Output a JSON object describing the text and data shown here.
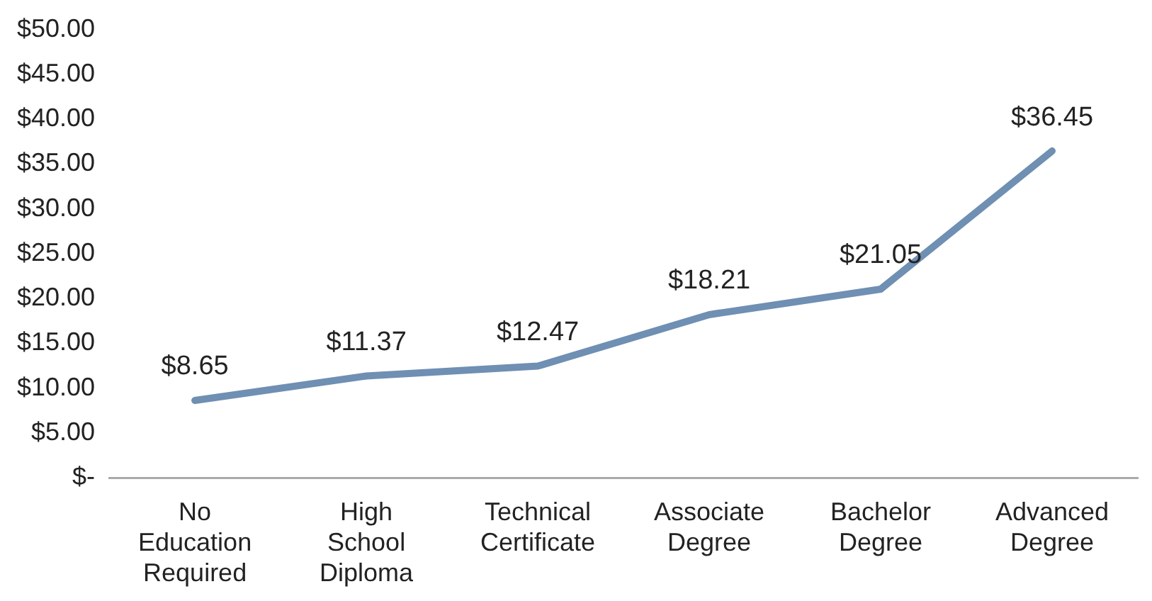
{
  "chart_data": {
    "type": "line",
    "categories": [
      "No Education Required",
      "High School Diploma",
      "Technical Certificate",
      "Associate Degree",
      "Bachelor Degree",
      "Advanced Degree"
    ],
    "series": [
      {
        "color": "#6f8fb3",
        "values": [
          8.65,
          11.37,
          12.47,
          18.21,
          21.05,
          36.45
        ],
        "value_labels": [
          "$8.65",
          "$11.37",
          "$12.47",
          "$18.21",
          "$21.05",
          "$36.45"
        ]
      }
    ],
    "ylim": [
      0,
      50
    ],
    "yticks": [
      {
        "value": 0,
        "label": "$-"
      },
      {
        "value": 5,
        "label": "$5.00"
      },
      {
        "value": 10,
        "label": "$10.00"
      },
      {
        "value": 15,
        "label": "$15.00"
      },
      {
        "value": 20,
        "label": "$20.00"
      },
      {
        "value": 25,
        "label": "$25.00"
      },
      {
        "value": 30,
        "label": "$30.00"
      },
      {
        "value": 35,
        "label": "$35.00"
      },
      {
        "value": 40,
        "label": "$40.00"
      },
      {
        "value": 45,
        "label": "$45.00"
      },
      {
        "value": 50,
        "label": "$50.00"
      }
    ],
    "grid": false,
    "legend": false,
    "marker": "none",
    "line_style": "solid"
  }
}
